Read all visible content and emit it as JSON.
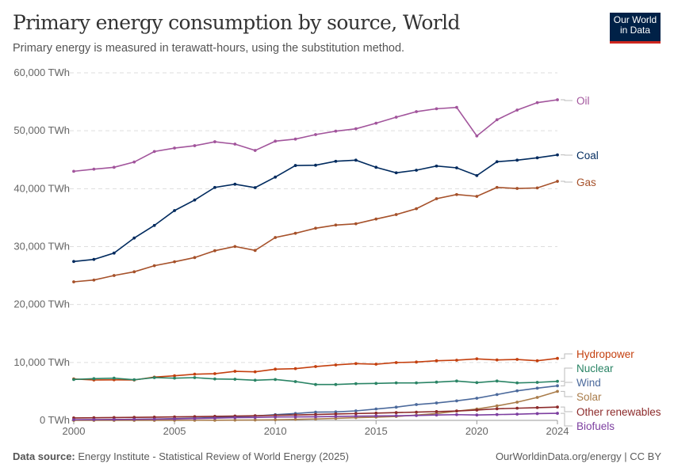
{
  "header": {
    "title": "Primary energy consumption by source, World",
    "subtitle": "Primary energy is measured in terawatt-hours, using the substitution method.",
    "logo_text": "Our World in Data"
  },
  "footer": {
    "source_label": "Data source:",
    "source_text": "Energy Institute - Statistical Review of World Energy (2025)",
    "credit": "OurWorldinData.org/energy | CC BY"
  },
  "chart_data": {
    "type": "line",
    "title": "Primary energy consumption by source, World",
    "ylabel": "",
    "xlabel": "",
    "xlim": [
      2000,
      2024
    ],
    "ylim": [
      0,
      60000
    ],
    "unit": "TWh",
    "grid": true,
    "legend": "right (inline labels)",
    "y_ticks": [
      "0 TWh",
      "10,000 TWh",
      "20,000 TWh",
      "30,000 TWh",
      "40,000 TWh",
      "50,000 TWh",
      "60,000 TWh"
    ],
    "y_tick_values": [
      0,
      10000,
      20000,
      30000,
      40000,
      50000,
      60000
    ],
    "x_ticks": [
      "2000",
      "2005",
      "2010",
      "2015",
      "2020",
      "2024"
    ],
    "x_tick_values": [
      2000,
      2005,
      2010,
      2015,
      2020,
      2024
    ],
    "x": [
      2000,
      2001,
      2002,
      2003,
      2004,
      2005,
      2006,
      2007,
      2008,
      2009,
      2010,
      2011,
      2012,
      2013,
      2014,
      2015,
      2016,
      2017,
      2018,
      2019,
      2020,
      2021,
      2022,
      2023,
      2024
    ],
    "series": [
      {
        "name": "Oil",
        "color": "#a2559c",
        "values": [
          43000,
          43370,
          43690,
          44600,
          46420,
          47010,
          47420,
          48100,
          47700,
          46600,
          48200,
          48560,
          49340,
          49930,
          50340,
          51300,
          52340,
          53300,
          53800,
          54030,
          49100,
          51900,
          53570,
          54850,
          55350
        ]
      },
      {
        "name": "Coal",
        "color": "#002a5e",
        "values": [
          27430,
          27790,
          28880,
          31480,
          33660,
          36220,
          38040,
          40220,
          40770,
          40180,
          42000,
          44000,
          44050,
          44730,
          44920,
          43690,
          42740,
          43190,
          43910,
          43600,
          42270,
          44650,
          44920,
          45330,
          45830
        ]
      },
      {
        "name": "Gas",
        "color": "#a6512a",
        "values": [
          23920,
          24230,
          25010,
          25650,
          26700,
          27380,
          28110,
          29290,
          30020,
          29340,
          31570,
          32300,
          33170,
          33720,
          33940,
          34760,
          35530,
          36540,
          38270,
          38990,
          38680,
          40220,
          40040,
          40130,
          41270
        ]
      },
      {
        "name": "Hydropower",
        "color": "#c4400f",
        "values": [
          7150,
          6970,
          7000,
          6970,
          7470,
          7700,
          7970,
          8060,
          8470,
          8380,
          8840,
          8930,
          9290,
          9570,
          9800,
          9700,
          9980,
          10070,
          10290,
          10390,
          10620,
          10430,
          10520,
          10290,
          10700
        ]
      },
      {
        "name": "Nuclear",
        "color": "#2a8465",
        "values": [
          7060,
          7200,
          7290,
          7020,
          7380,
          7290,
          7380,
          7150,
          7100,
          6930,
          7060,
          6700,
          6190,
          6190,
          6330,
          6380,
          6470,
          6470,
          6600,
          6790,
          6520,
          6790,
          6470,
          6560,
          6740
        ]
      },
      {
        "name": "Wind",
        "color": "#4c6a9c",
        "values": [
          90,
          110,
          150,
          180,
          240,
          300,
          380,
          490,
          630,
          770,
          980,
          1190,
          1420,
          1460,
          1640,
          1960,
          2280,
          2730,
          3000,
          3370,
          3820,
          4460,
          5100,
          5560,
          5970
        ]
      },
      {
        "name": "Solar",
        "color": "#a97c4a",
        "values": [
          3,
          4,
          5,
          6,
          8,
          12,
          16,
          22,
          44,
          61,
          95,
          170,
          240,
          350,
          470,
          560,
          680,
          910,
          1190,
          1600,
          1960,
          2500,
          3140,
          3960,
          5010
        ]
      },
      {
        "name": "Other renewables",
        "color": "#8c2a2a",
        "values": [
          420,
          450,
          490,
          520,
          560,
          600,
          640,
          690,
          750,
          800,
          870,
          940,
          1020,
          1100,
          1180,
          1260,
          1340,
          1420,
          1520,
          1620,
          1780,
          2000,
          2100,
          2200,
          2300
        ]
      },
      {
        "name": "Biofuels",
        "color": "#7d3fa0",
        "values": [
          120,
          130,
          150,
          180,
          210,
          250,
          310,
          390,
          470,
          510,
          580,
          600,
          620,
          680,
          730,
          760,
          800,
          840,
          930,
          990,
          930,
          1000,
          1070,
          1170,
          1220
        ]
      }
    ]
  }
}
